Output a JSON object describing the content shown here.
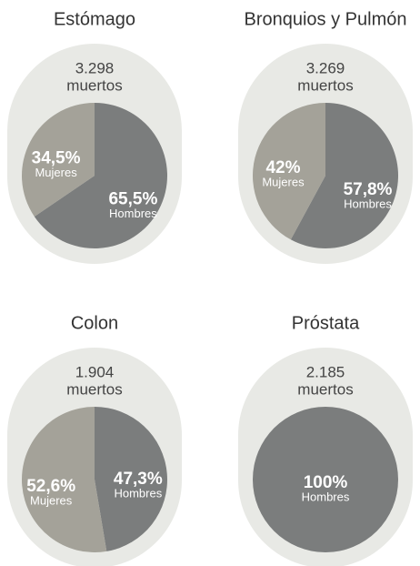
{
  "chart_data": [
    {
      "type": "pie",
      "title": "Estómago",
      "annotations": [
        "3.298",
        "muertos"
      ],
      "categories": [
        "Hombres",
        "Mujeres"
      ],
      "values": [
        65.5,
        34.5
      ],
      "value_labels": [
        "65,5%",
        "34,5%"
      ],
      "colors": [
        "#7b7d7d",
        "#a4a299"
      ]
    },
    {
      "type": "pie",
      "title": "Bronquios y Pulmón",
      "annotations": [
        "3.269",
        "muertos"
      ],
      "categories": [
        "Hombres",
        "Mujeres"
      ],
      "values": [
        57.8,
        42
      ],
      "value_labels": [
        "57,8%",
        "42%"
      ],
      "colors": [
        "#7b7d7d",
        "#a4a299"
      ]
    },
    {
      "type": "pie",
      "title": "Colon",
      "annotations": [
        "1.904",
        "muertos"
      ],
      "categories": [
        "Hombres",
        "Mujeres"
      ],
      "values": [
        47.3,
        52.6
      ],
      "value_labels": [
        "47,3%",
        "52,6%"
      ],
      "colors": [
        "#7b7d7d",
        "#a4a299"
      ]
    },
    {
      "type": "pie",
      "title": "Próstata",
      "annotations": [
        "2.185",
        "muertos"
      ],
      "categories": [
        "Hombres"
      ],
      "values": [
        100
      ],
      "value_labels": [
        "100%"
      ],
      "colors": [
        "#7b7d7d"
      ]
    }
  ]
}
